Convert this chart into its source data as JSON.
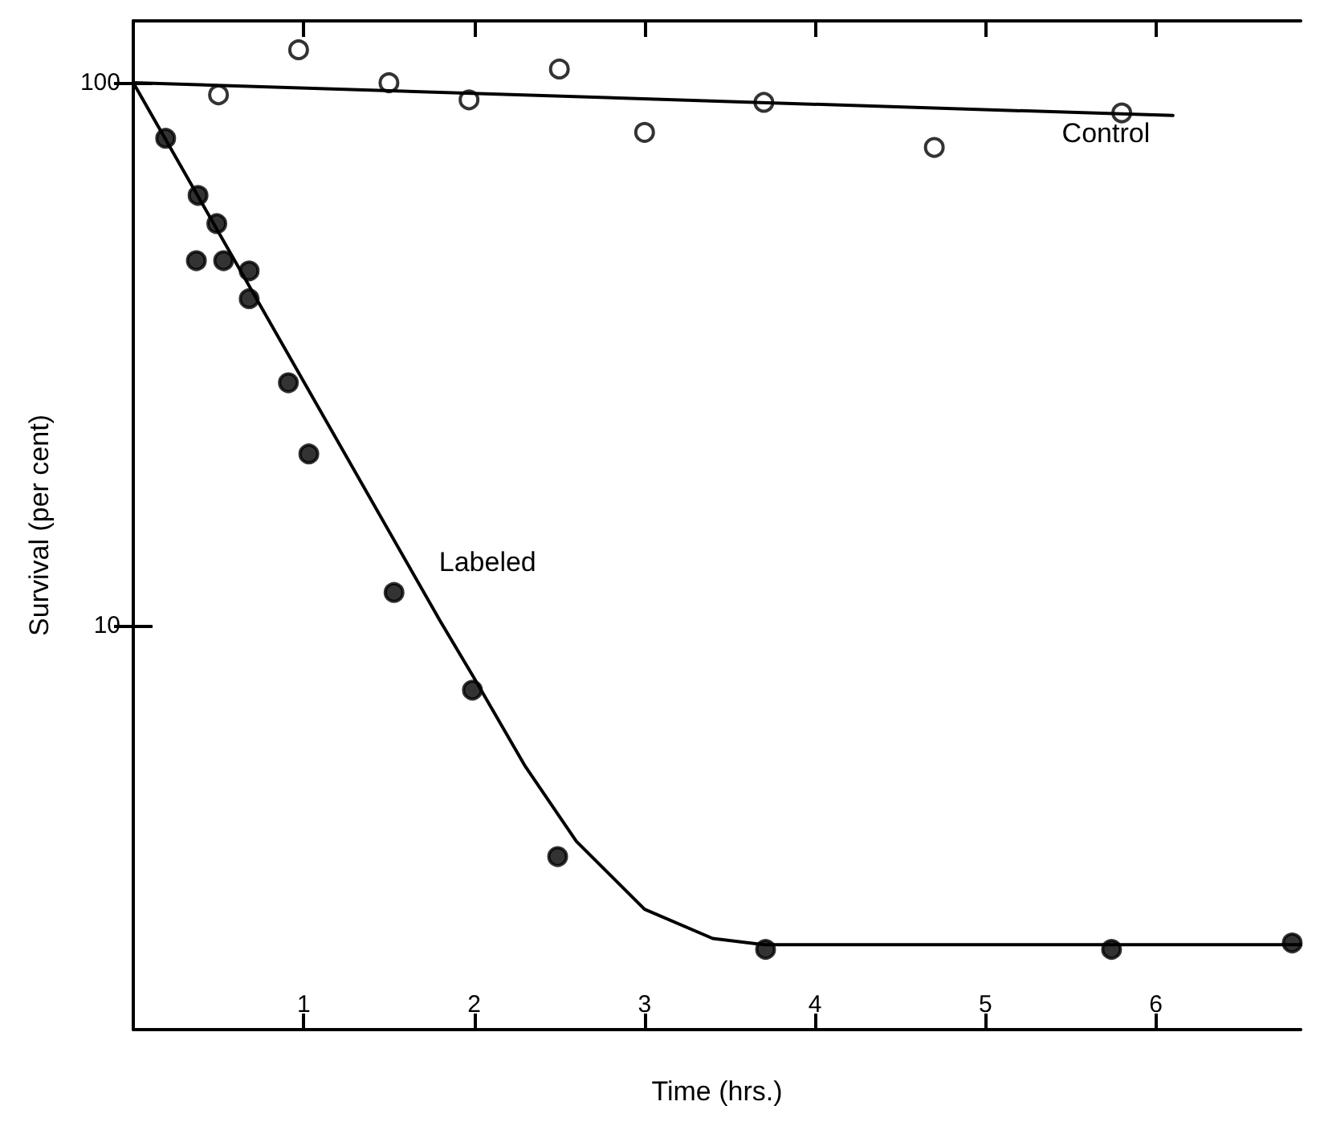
{
  "chart_data": {
    "type": "scatter",
    "xlabel": "Time (hrs.)",
    "ylabel": "Survival (per cent)",
    "log": "y",
    "grid": false,
    "legend": false,
    "xlim": [
      0,
      6.85
    ],
    "xticks": [
      1,
      2,
      3,
      4,
      5,
      6
    ],
    "ylim": [
      1.8,
      130
    ],
    "yticks": [
      10,
      100
    ],
    "series": [
      {
        "marker": "circle",
        "color": "#ffffff",
        "x": [
          0.5,
          0.97,
          1.5,
          1.97,
          2.5,
          3.0,
          3.7,
          4.7,
          5.8
        ],
        "values": [
          95,
          115,
          100,
          93,
          106,
          81,
          92,
          76,
          88
        ]
      },
      {
        "type": "line",
        "name": "Control",
        "marker": "none",
        "line_style": "solid",
        "color": "#000000",
        "x": [
          0,
          6.1
        ],
        "values": [
          100,
          87
        ]
      },
      {
        "marker": "circle",
        "color": "#000000",
        "x": [
          0.19,
          0.38,
          0.37,
          0.49,
          0.53,
          0.68,
          0.68,
          0.91,
          1.03,
          1.53,
          1.99,
          2.49,
          3.71,
          5.74,
          6.8
        ],
        "values": [
          79,
          62,
          47,
          55,
          47,
          45,
          40,
          28,
          20.7,
          11.5,
          7.6,
          3.75,
          2.53,
          2.53,
          2.6
        ]
      },
      {
        "type": "line",
        "name": "Labeled",
        "marker": "none",
        "line_style": "solid",
        "color": "#000000",
        "x": [
          0,
          1.8,
          2.0,
          2.3,
          2.6,
          3.0,
          3.4,
          3.7,
          6.85
        ],
        "values": [
          100,
          10.2,
          8,
          5.5,
          4.0,
          3.0,
          2.65,
          2.58,
          2.58
        ]
      }
    ]
  }
}
